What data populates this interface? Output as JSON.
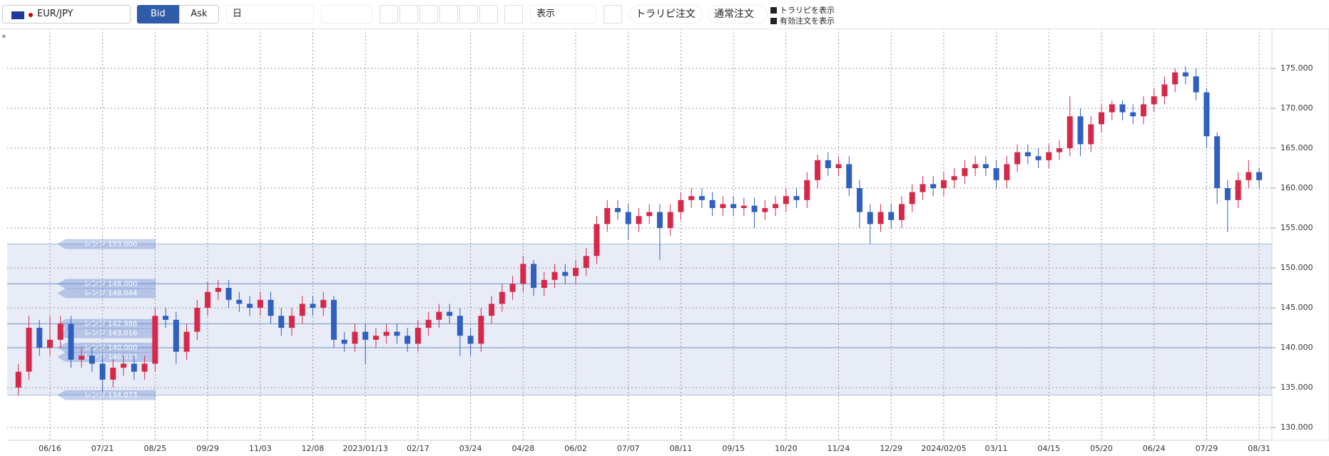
{
  "toolbar": {
    "symbol": "EUR/JPY",
    "bid": "Bid",
    "ask": "Ask",
    "period": "日",
    "view": "表示",
    "trap_order": "トラリピ注文",
    "normal_order": "通常注文",
    "show_trap": "トラリピを表示",
    "show_orders": "有効注文を表示",
    "expand": "»"
  },
  "chart_data": {
    "type": "candlestick",
    "up_color": "#d6294a",
    "down_color": "#2f5fbf",
    "categories": [
      null,
      null,
      null,
      "06/16",
      null,
      null,
      null,
      null,
      "07/21",
      null,
      null,
      null,
      null,
      "08/25",
      null,
      null,
      null,
      null,
      "09/29",
      null,
      null,
      null,
      null,
      "11/03",
      null,
      null,
      null,
      null,
      "12/08",
      null,
      null,
      null,
      null,
      "2023/01/13",
      null,
      null,
      null,
      null,
      "02/17",
      null,
      null,
      null,
      null,
      "03/24",
      null,
      null,
      null,
      null,
      "04/28",
      null,
      null,
      null,
      null,
      "06/02",
      null,
      null,
      null,
      null,
      "07/07",
      null,
      null,
      null,
      null,
      "08/11",
      null,
      null,
      null,
      null,
      "09/15",
      null,
      null,
      null,
      null,
      "10/20",
      null,
      null,
      null,
      null,
      "11/24",
      null,
      null,
      null,
      null,
      "12/29",
      null,
      null,
      null,
      null,
      "2024/02/05",
      null,
      null,
      null,
      null,
      "03/11",
      null,
      null,
      null,
      null,
      "04/15",
      null,
      null,
      null,
      null,
      "05/20",
      null,
      null,
      null,
      null,
      "06/24",
      null,
      null,
      null,
      null,
      "07/29",
      null,
      null,
      null,
      null,
      "08/31"
    ],
    "open": [
      135,
      137,
      142.5,
      140,
      141,
      143,
      138.5,
      139,
      138,
      136,
      137.5,
      138,
      137,
      138,
      144,
      143.5,
      139.5,
      142,
      145,
      147,
      147.5,
      146,
      145.5,
      145,
      146,
      144,
      142.5,
      144,
      145.5,
      145,
      146,
      141,
      140.5,
      142,
      141,
      141.5,
      142,
      141.5,
      140.5,
      142.5,
      143.5,
      144.5,
      144,
      141.5,
      140.5,
      144,
      145.5,
      147,
      148,
      150.5,
      147.5,
      148.5,
      149.5,
      149,
      150,
      151.5,
      155.5,
      157.5,
      157,
      155.5,
      156.5,
      157,
      155,
      157,
      158.5,
      159,
      158.5,
      157.5,
      158,
      157.5,
      157.8,
      157,
      157.5,
      158,
      159,
      158.5,
      161,
      163.5,
      162.5,
      163,
      160,
      157,
      155.5,
      157,
      156,
      158,
      159.5,
      160.5,
      160,
      161,
      161.5,
      162.5,
      163,
      162.5,
      161,
      163,
      164.5,
      164,
      163.5,
      164.5,
      165,
      169,
      165.5,
      168,
      169.5,
      170.5,
      169.5,
      169,
      170.5,
      171.5,
      173,
      174.5,
      174,
      172,
      166.5,
      160,
      158.5,
      161,
      162
    ],
    "high": [
      138,
      144,
      143.5,
      144,
      144,
      144,
      140,
      140,
      139,
      138.5,
      139,
      139,
      139,
      145,
      145,
      144.5,
      143,
      146,
      148.3,
      148.5,
      148.5,
      147,
      146.5,
      147,
      147,
      145,
      145,
      146.5,
      146.5,
      147,
      146.5,
      142,
      143,
      143,
      142.5,
      143,
      143,
      142.5,
      143.5,
      144.5,
      145.5,
      145.5,
      145,
      142.5,
      145,
      146.5,
      148,
      149,
      151.5,
      151,
      149.5,
      150.5,
      150.5,
      151,
      152.5,
      156.5,
      158.5,
      158.5,
      158,
      157.5,
      158,
      158,
      158,
      159.5,
      160,
      160,
      159.5,
      159,
      159,
      158.8,
      158.8,
      158.5,
      159,
      160,
      160,
      162,
      164.2,
      164.5,
      164,
      164,
      161,
      158,
      158,
      158,
      159,
      160.5,
      161.5,
      161.5,
      162,
      162.5,
      163.5,
      164,
      164,
      163.5,
      164,
      165.5,
      165.5,
      165,
      165.5,
      166,
      171.5,
      170,
      169,
      170.5,
      171,
      171,
      170.5,
      171.5,
      172.5,
      174,
      175,
      175.3,
      175,
      172.5,
      167,
      161,
      162,
      163.5,
      162.5
    ],
    "low": [
      134,
      136,
      139,
      139,
      140,
      137.5,
      137.5,
      137,
      134.5,
      135,
      136.5,
      136,
      136,
      137,
      142.5,
      138,
      138.5,
      141,
      144,
      146,
      145,
      144.5,
      144,
      144,
      143,
      141.5,
      141.5,
      143,
      144,
      144,
      140,
      139.5,
      139.5,
      138,
      140,
      140.5,
      140.5,
      139.5,
      139.5,
      141.5,
      142.5,
      143,
      139,
      139,
      139.5,
      143,
      144.5,
      146,
      147,
      146.5,
      146.5,
      147.5,
      148,
      148,
      149,
      150.5,
      154.5,
      156,
      153.5,
      154.5,
      155.5,
      151,
      154,
      156,
      157.5,
      157.5,
      156.5,
      156.5,
      156.5,
      156.5,
      155,
      156,
      156.5,
      157,
      157.5,
      157.5,
      160,
      161.5,
      161.5,
      159,
      155,
      153,
      154.5,
      155,
      155,
      157,
      158.5,
      159,
      159,
      160,
      160.5,
      161.5,
      161.5,
      160,
      160,
      162,
      163,
      162.5,
      162.5,
      163.5,
      164,
      164,
      164.5,
      167,
      168.5,
      168.5,
      168,
      168,
      169.5,
      170.5,
      172,
      173,
      171,
      165,
      158,
      154.5,
      157.5,
      160,
      160
    ],
    "close": [
      137,
      142.5,
      140,
      141,
      143,
      138.5,
      139,
      138,
      136,
      137.5,
      138,
      137,
      138,
      144,
      143.5,
      139.5,
      142,
      145,
      147,
      147.5,
      146,
      145.5,
      145,
      146,
      144,
      142.5,
      144,
      145.5,
      145,
      146,
      141,
      140.5,
      142,
      141,
      141.5,
      142,
      141.5,
      140.5,
      142.5,
      143.5,
      144.5,
      144,
      141.5,
      140.5,
      144,
      145.5,
      147,
      148,
      150.5,
      147.5,
      148.5,
      149.5,
      149,
      150,
      151.5,
      155.5,
      157.5,
      157,
      155.5,
      156.5,
      157,
      155,
      157,
      158.5,
      159,
      158.5,
      157.5,
      158,
      157.5,
      157.8,
      157,
      157.5,
      158,
      159,
      158.5,
      161,
      163.5,
      162.5,
      163,
      160,
      157,
      155.5,
      157,
      156,
      158,
      159.5,
      160.5,
      160,
      161,
      161.5,
      162.5,
      163,
      162.5,
      161,
      163,
      164.5,
      164,
      163.5,
      164.5,
      165,
      169,
      165.5,
      168,
      169.5,
      170.5,
      169.5,
      169,
      170.5,
      171.5,
      173,
      174.5,
      174,
      172,
      166.5,
      160,
      158.5,
      161,
      162,
      161
    ],
    "ylim": [
      128.4,
      180
    ],
    "yticks": [
      {
        "value": 130,
        "label": "130.000"
      },
      {
        "value": 135,
        "label": "135.000"
      },
      {
        "value": 140,
        "label": "140.000"
      },
      {
        "value": 145,
        "label": "145.000"
      },
      {
        "value": 150,
        "label": "150.000"
      },
      {
        "value": 155,
        "label": "155.000"
      },
      {
        "value": 160,
        "label": "160.000"
      },
      {
        "value": 165,
        "label": "165.000"
      },
      {
        "value": 170,
        "label": "170.000"
      },
      {
        "value": 175,
        "label": "175.000"
      }
    ],
    "grid": true,
    "ranges": [
      {
        "value": 153,
        "label": "レンジ 153.000"
      },
      {
        "value": 148,
        "label": "レンジ 148.000"
      },
      {
        "value": 148.044,
        "label": "レンジ 148.044"
      },
      {
        "value": 142.986,
        "label": "レンジ 142.986"
      },
      {
        "value": 143.016,
        "label": "レンジ 143.016"
      },
      {
        "value": 140,
        "label": "レンジ 140.000"
      },
      {
        "value": 140.018,
        "label": "レンジ 140.018"
      },
      {
        "value": 134.073,
        "label": "レンジ 134.073"
      }
    ],
    "range_color": "#5b7fc9"
  }
}
